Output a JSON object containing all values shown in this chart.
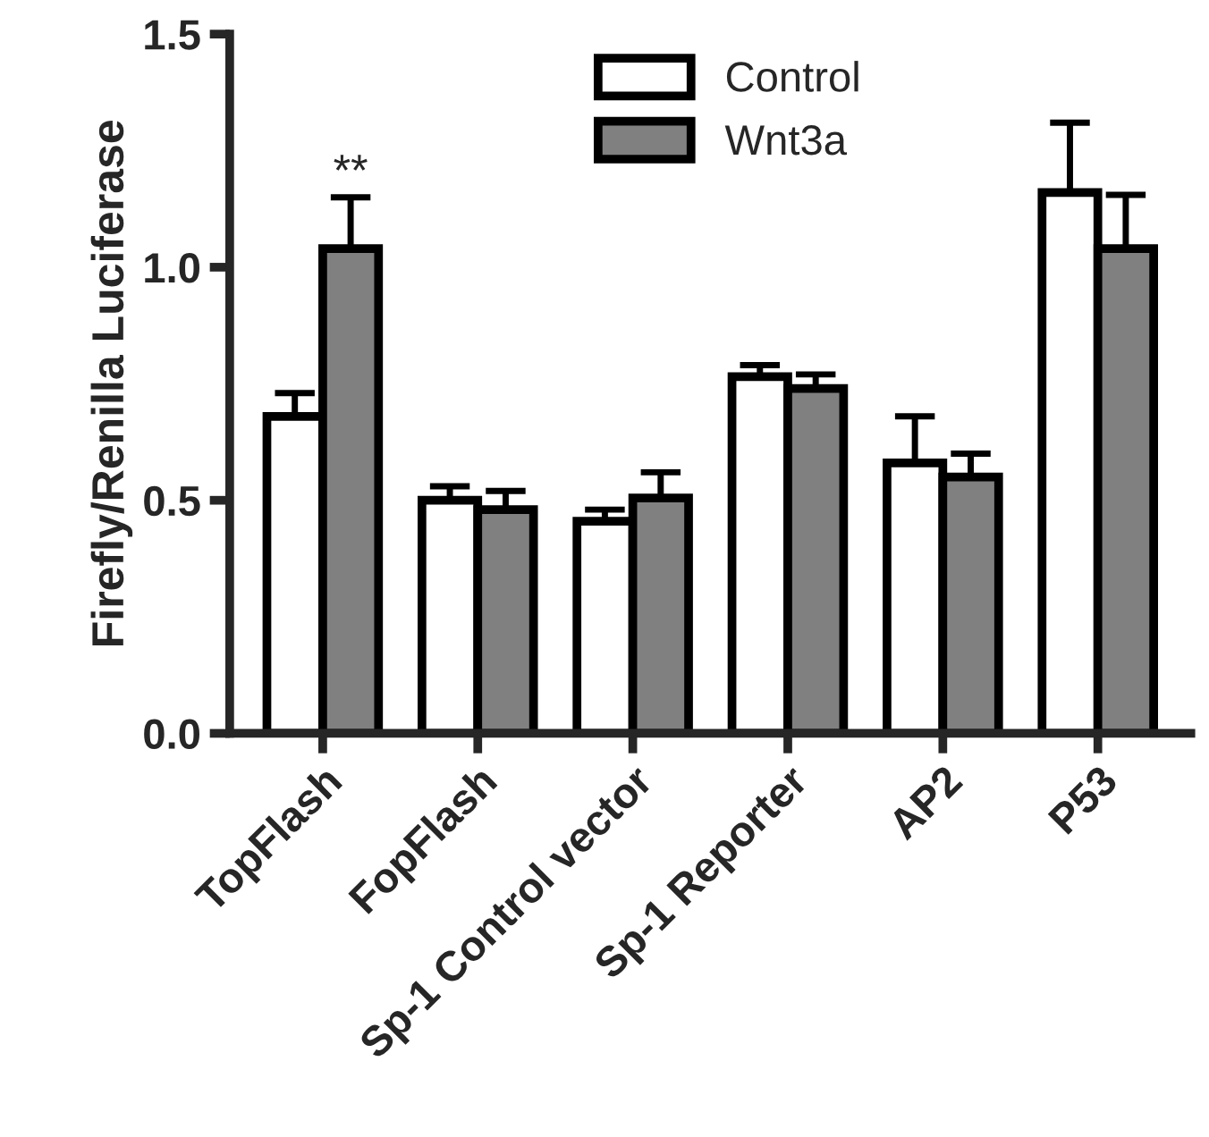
{
  "chart_data": {
    "type": "bar",
    "ylabel": "Firefly/Renilla Luciferase",
    "categories": [
      "TopFlash",
      "FopFlash",
      "Sp-1 Control vector",
      "Sp-1 Reporter",
      "AP2",
      "P53"
    ],
    "series": [
      {
        "name": "Control",
        "color": "#ffffff",
        "values": [
          0.68,
          0.5,
          0.455,
          0.765,
          0.58,
          1.16
        ],
        "errors": [
          0.05,
          0.03,
          0.025,
          0.025,
          0.1,
          0.15
        ]
      },
      {
        "name": "Wnt3a",
        "color": "#808080",
        "values": [
          1.04,
          0.48,
          0.505,
          0.74,
          0.55,
          1.04
        ],
        "errors": [
          0.11,
          0.04,
          0.055,
          0.03,
          0.05,
          0.115
        ]
      }
    ],
    "ylim": [
      0,
      1.5
    ],
    "yticks": [
      {
        "value": 0,
        "label": "0.0"
      },
      {
        "value": 0.5,
        "label": "0.5"
      },
      {
        "value": 1.0,
        "label": "1.0"
      },
      {
        "value": 1.5,
        "label": "1.5"
      }
    ],
    "annotations": [
      "**"
    ],
    "legend": "top",
    "grid": false
  }
}
